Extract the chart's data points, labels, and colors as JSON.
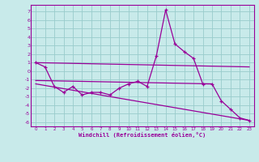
{
  "xlabel": "Windchill (Refroidissement éolien,°C)",
  "color": "#990099",
  "bg_color": "#c8eaea",
  "grid_color": "#99cccc",
  "ylim": [
    -6.5,
    7.8
  ],
  "xlim": [
    -0.5,
    23.5
  ],
  "yticks": [
    -6,
    -5,
    -4,
    -3,
    -2,
    -1,
    0,
    1,
    2,
    3,
    4,
    5,
    6,
    7
  ],
  "xticks": [
    0,
    1,
    2,
    3,
    4,
    5,
    6,
    7,
    8,
    9,
    10,
    11,
    12,
    13,
    14,
    15,
    16,
    17,
    18,
    19,
    20,
    21,
    22,
    23
  ],
  "main_x": [
    0,
    1,
    2,
    3,
    4,
    5,
    6,
    7,
    8,
    9,
    10,
    11,
    12,
    13,
    14,
    15,
    16,
    17,
    18,
    19,
    20,
    21,
    22,
    23
  ],
  "main_y": [
    1.0,
    0.5,
    -1.8,
    -2.5,
    -1.8,
    -2.8,
    -2.5,
    -2.5,
    -2.8,
    -2.0,
    -1.5,
    -1.2,
    -1.8,
    1.8,
    7.2,
    3.2,
    2.3,
    1.5,
    -1.5,
    -1.5,
    -3.5,
    -4.5,
    -5.5,
    -5.8
  ],
  "line1_x": [
    0,
    23
  ],
  "line1_y": [
    1.0,
    0.5
  ],
  "line2_x": [
    0,
    19
  ],
  "line2_y": [
    -1.1,
    -1.5
  ],
  "line3_x": [
    0,
    23
  ],
  "line3_y": [
    -1.5,
    -5.8
  ]
}
